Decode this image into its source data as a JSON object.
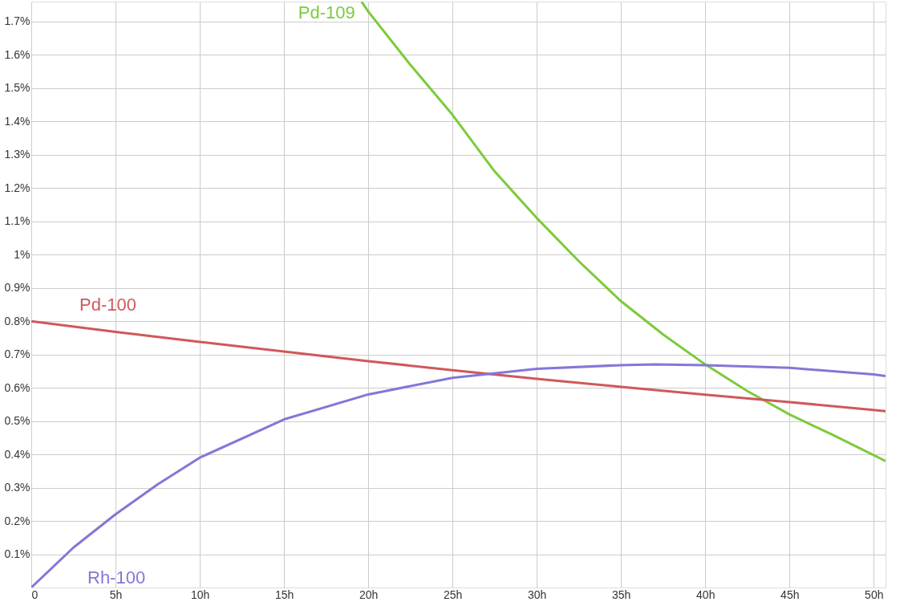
{
  "chart_data": {
    "type": "line",
    "xlim": [
      0,
      50.7
    ],
    "ylim": [
      0,
      1.76
    ],
    "xticks": [
      0,
      {
        "value": 5,
        "label": "5h"
      },
      {
        "value": 10,
        "label": "10h"
      },
      {
        "value": 15,
        "label": "15h"
      },
      {
        "value": 20,
        "label": "20h"
      },
      {
        "value": 25,
        "label": "25h"
      },
      {
        "value": 30,
        "label": "30h"
      },
      {
        "value": 35,
        "label": "35h"
      },
      {
        "value": 40,
        "label": "40h"
      },
      {
        "value": 45,
        "label": "45h"
      },
      {
        "value": 50,
        "label": "50h"
      }
    ],
    "yticks": [
      {
        "value": 0.1,
        "label": "0.1%"
      },
      {
        "value": 0.2,
        "label": "0.2%"
      },
      {
        "value": 0.3,
        "label": "0.3%"
      },
      {
        "value": 0.4,
        "label": "0.4%"
      },
      {
        "value": 0.5,
        "label": "0.5%"
      },
      {
        "value": 0.6,
        "label": "0.6%"
      },
      {
        "value": 0.7,
        "label": "0.7%"
      },
      {
        "value": 0.8,
        "label": "0.8%"
      },
      {
        "value": 0.9,
        "label": "0.9%"
      },
      {
        "value": 1.0,
        "label": "1%"
      },
      {
        "value": 1.1,
        "label": "1.1%"
      },
      {
        "value": 1.2,
        "label": "1.2%"
      },
      {
        "value": 1.3,
        "label": "1.3%"
      },
      {
        "value": 1.4,
        "label": "1.4%"
      },
      {
        "value": 1.5,
        "label": "1.5%"
      },
      {
        "value": 1.6,
        "label": "1.6%"
      },
      {
        "value": 1.7,
        "label": "1.7%"
      }
    ],
    "grid": true,
    "legend": false,
    "marker": "none",
    "line_style": "solid",
    "series": [
      {
        "name": "Pd-109",
        "color": "#7ccb3a",
        "x": [
          19.6,
          20,
          22.5,
          25,
          27.5,
          30,
          32.5,
          35,
          37.5,
          40,
          42.5,
          45,
          47.5,
          50.7
        ],
        "values": [
          1.76,
          1.73,
          1.57,
          1.42,
          1.25,
          1.11,
          0.98,
          0.86,
          0.76,
          0.67,
          0.59,
          0.52,
          0.46,
          0.38
        ]
      },
      {
        "name": "Pd-100",
        "color": "#d0585a",
        "x": [
          0,
          5,
          10,
          15,
          20,
          25,
          30,
          35,
          40,
          45,
          50.7
        ],
        "values": [
          0.8,
          0.768,
          0.738,
          0.709,
          0.68,
          0.653,
          0.627,
          0.603,
          0.579,
          0.557,
          0.53
        ]
      },
      {
        "name": "Rh-100",
        "color": "#8576d8",
        "x": [
          0,
          2.5,
          5,
          7.5,
          10,
          15,
          20,
          25,
          30,
          35,
          37,
          40,
          45,
          50,
          50.7
        ],
        "values": [
          0,
          0.12,
          0.22,
          0.31,
          0.39,
          0.505,
          0.58,
          0.63,
          0.657,
          0.668,
          0.67,
          0.668,
          0.66,
          0.64,
          0.635
        ]
      }
    ]
  }
}
